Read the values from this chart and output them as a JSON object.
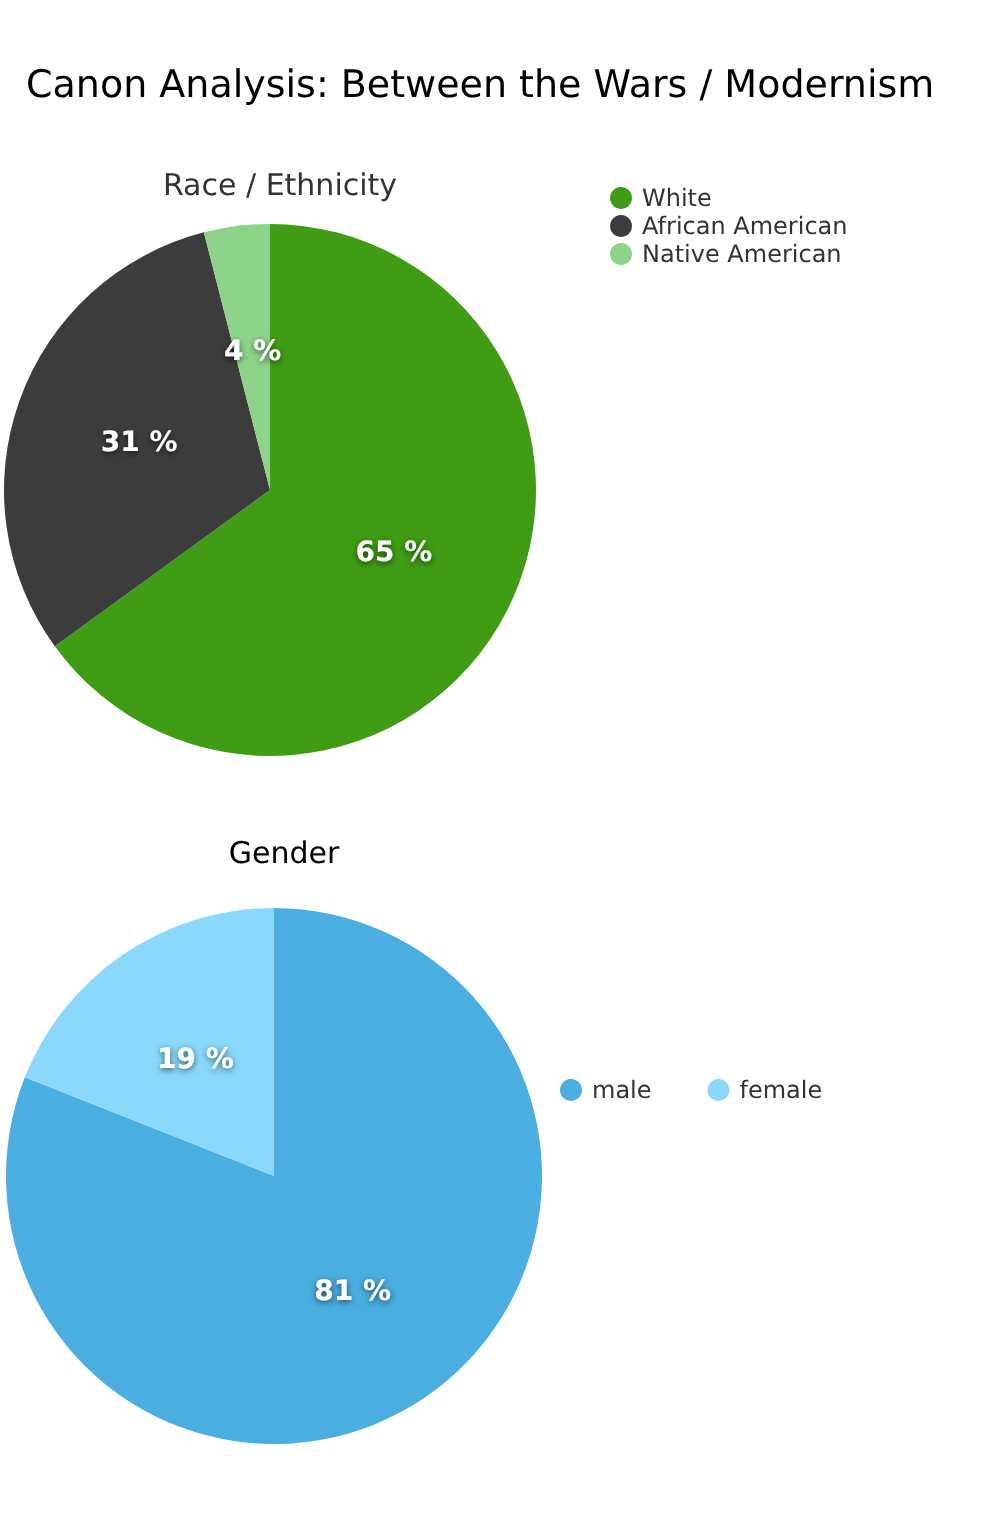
{
  "chart_data": [
    {
      "type": "pie",
      "title": "Canon Analysis: Between the Wars / Modernism",
      "subtitle": "Race / Ethnicity",
      "categories": [
        "White",
        "African American",
        "Native American"
      ],
      "values": [
        65,
        31,
        4
      ],
      "colors": [
        "#3f9c14",
        "#3c3c3c",
        "#8dd38a"
      ],
      "value_labels": [
        "65 %",
        "31 %",
        "4 %"
      ],
      "legend": "top right"
    },
    {
      "type": "pie",
      "title": "Gender",
      "categories": [
        "male",
        "female"
      ],
      "values": [
        81,
        19
      ],
      "colors": [
        "#4aaee0",
        "#8ad8fb"
      ],
      "value_labels": [
        "81 %",
        "19 %"
      ],
      "legend": "right"
    }
  ]
}
